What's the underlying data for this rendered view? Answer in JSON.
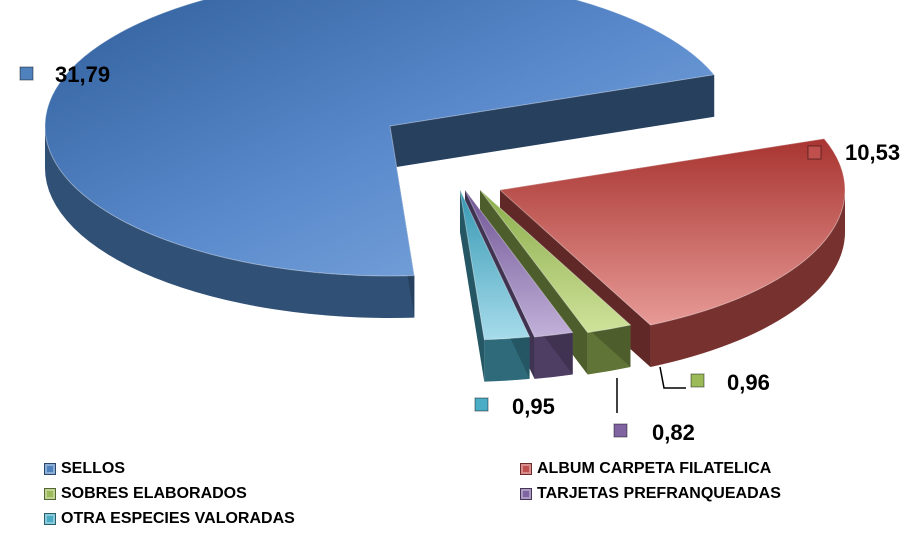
{
  "chart_data": {
    "type": "pie",
    "style": "3d exploded",
    "categories": [
      "SELLOS",
      "ALBUM CARPETA FILATELICA",
      "SOBRES ELABORADOS",
      "TARJETAS PREFRANQUEADAS",
      "OTRA ESPECIES VALORADAS"
    ],
    "values": [
      31.79,
      10.53,
      0.96,
      0.82,
      0.95
    ],
    "value_labels": [
      "31,79",
      "10,53",
      "0,96",
      "0,82",
      "0,95"
    ],
    "colors": [
      "#4f81bd",
      "#c0504d",
      "#9bbb59",
      "#8064a2",
      "#4bacc6"
    ],
    "legend_position": "bottom"
  }
}
